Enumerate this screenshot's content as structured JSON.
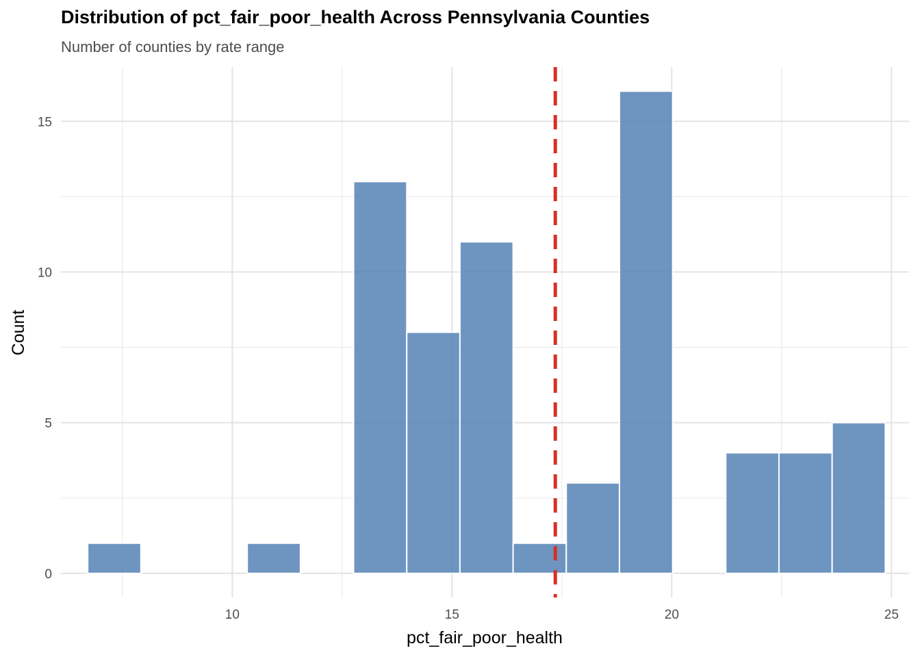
{
  "chart_data": {
    "type": "bar",
    "title": "Distribution of pct_fair_poor_health Across Pennsylvania Counties",
    "subtitle": "Number of counties by rate range",
    "xlabel": "pct_fair_poor_health",
    "ylabel": "Count",
    "bins": [
      {
        "x0": 6.71,
        "x1": 7.92,
        "count": 1
      },
      {
        "x0": 7.92,
        "x1": 9.13,
        "count": 0
      },
      {
        "x0": 9.13,
        "x1": 10.34,
        "count": 0
      },
      {
        "x0": 10.34,
        "x1": 11.55,
        "count": 1
      },
      {
        "x0": 11.55,
        "x1": 12.76,
        "count": 0
      },
      {
        "x0": 12.76,
        "x1": 13.97,
        "count": 13
      },
      {
        "x0": 13.97,
        "x1": 15.18,
        "count": 8
      },
      {
        "x0": 15.18,
        "x1": 16.39,
        "count": 11
      },
      {
        "x0": 16.39,
        "x1": 17.6,
        "count": 1
      },
      {
        "x0": 17.6,
        "x1": 18.81,
        "count": 3
      },
      {
        "x0": 18.81,
        "x1": 20.02,
        "count": 16
      },
      {
        "x0": 20.02,
        "x1": 21.23,
        "count": 0
      },
      {
        "x0": 21.23,
        "x1": 22.44,
        "count": 4
      },
      {
        "x0": 22.44,
        "x1": 23.65,
        "count": 4
      },
      {
        "x0": 23.65,
        "x1": 24.86,
        "count": 5
      }
    ],
    "reference_line": {
      "x": 17.35,
      "style": "dashed",
      "color": "#d73027"
    },
    "xlim": [
      6.1,
      25.4
    ],
    "ylim": [
      -0.8,
      16.8
    ],
    "x_ticks": [
      10,
      15,
      20,
      25
    ],
    "x_tick_labels": [
      "10",
      "15",
      "20",
      "25"
    ],
    "y_ticks": [
      0,
      5,
      10,
      15
    ],
    "y_tick_labels": [
      "0",
      "5",
      "10",
      "15"
    ],
    "bar_color": "#4a7bb0",
    "bar_opacity": 0.8,
    "bar_edge_color": "#ffffff",
    "grid": true,
    "legend": "none"
  }
}
